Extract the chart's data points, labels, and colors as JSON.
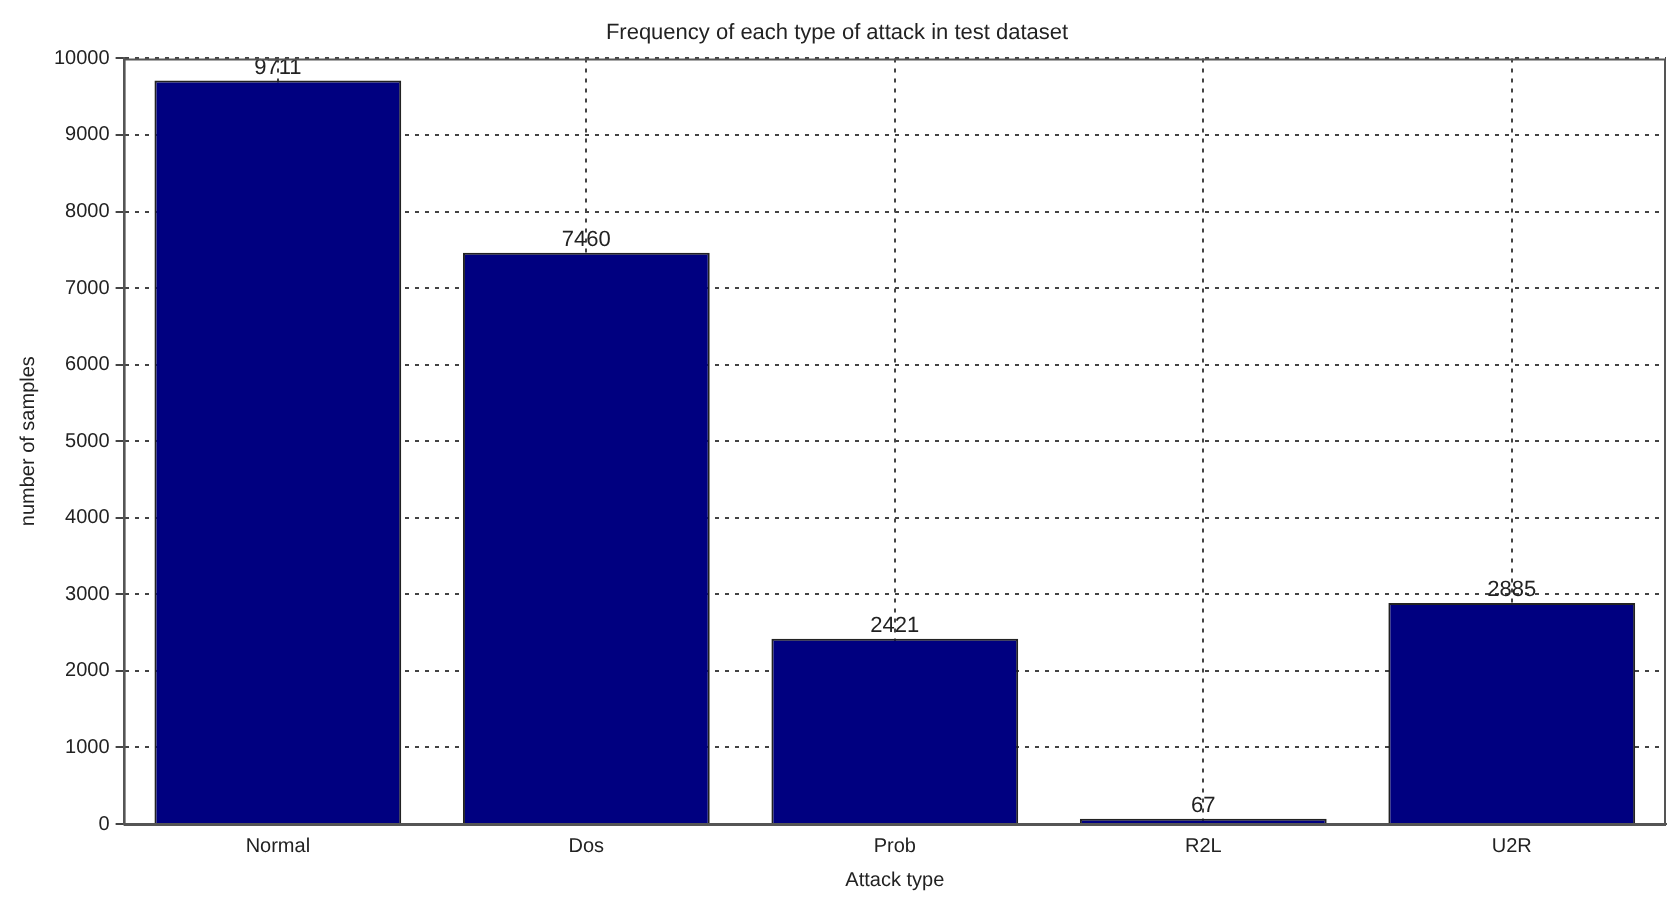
{
  "chart_data": {
    "type": "bar",
    "title": "Frequency of each type of attack in test dataset",
    "xlabel": "Attack type",
    "ylabel": "number of samples",
    "categories": [
      "Normal",
      "Dos",
      "Prob",
      "R2L",
      "U2R"
    ],
    "values": [
      9711,
      7460,
      2421,
      67,
      2885
    ],
    "color": "#000080",
    "ylim": [
      0,
      10000
    ],
    "yticks": [
      0,
      1000,
      2000,
      3000,
      4000,
      5000,
      6000,
      7000,
      8000,
      9000,
      10000
    ],
    "grid": true,
    "data_labels": true
  }
}
